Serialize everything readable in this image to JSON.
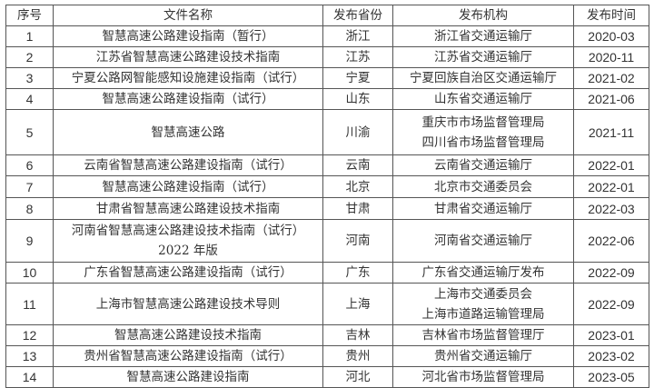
{
  "headers": [
    "序号",
    "文件名称",
    "发布省份",
    "发布机构",
    "发布时间"
  ],
  "rows": [
    {
      "no": "1",
      "name": [
        "智慧高速公路建设指南（暂行）"
      ],
      "province": "浙江",
      "org": [
        "浙江省交通运输厅"
      ],
      "date": "2020-03"
    },
    {
      "no": "2",
      "name": [
        "江苏省智慧高速公路建设技术指南"
      ],
      "province": "江苏",
      "org": [
        "江苏省交通运输厅"
      ],
      "date": "2020-11"
    },
    {
      "no": "3",
      "name": [
        "宁夏公路网智能感知设施建设指南（试行）"
      ],
      "province": "宁夏",
      "org": [
        "宁夏回族自治区交通运输厅"
      ],
      "date": "2021-02"
    },
    {
      "no": "4",
      "name": [
        "智慧高速公路建设指南（试行）"
      ],
      "province": "山东",
      "org": [
        "山东省交通运输厅"
      ],
      "date": "2021-06"
    },
    {
      "no": "5",
      "name": [
        "智慧高速公路"
      ],
      "province": "川渝",
      "org": [
        "重庆市市场监督管理局",
        "四川省市场监督管理局"
      ],
      "date": "2021-11"
    },
    {
      "no": "6",
      "name": [
        "云南省智慧高速公路建设指南（试行）"
      ],
      "province": "云南",
      "org": [
        "云南省交通运输厅"
      ],
      "date": "2022-01"
    },
    {
      "no": "7",
      "name": [
        "智慧高速公路建设指南（试行）"
      ],
      "province": "北京",
      "org": [
        "北京市交通委员会"
      ],
      "date": "2022-01"
    },
    {
      "no": "8",
      "name": [
        "甘肃省智慧高速公路建设技术指南"
      ],
      "province": "甘肃",
      "org": [
        "甘肃省交通运输厅"
      ],
      "date": "2022-03"
    },
    {
      "no": "9",
      "name": [
        "河南省智慧高速公路建设技术指南（试行）",
        "2022 年版"
      ],
      "province": "河南",
      "org": [
        "河南省交通运输厅"
      ],
      "date": "2022-06"
    },
    {
      "no": "10",
      "name": [
        "广东省智慧高速公路建设指南（试行）"
      ],
      "province": "广东",
      "org": [
        "广东省交通运输厅发布"
      ],
      "date": "2022-09"
    },
    {
      "no": "11",
      "name": [
        "上海市智慧高速公路建设技术导则"
      ],
      "province": "上海",
      "org": [
        "上海市交通委员会",
        "上海市道路运输管理局"
      ],
      "date": "2022-09"
    },
    {
      "no": "12",
      "name": [
        "智慧高速公路建设技术指南"
      ],
      "province": "吉林",
      "org": [
        "吉林省市场监督管理厅"
      ],
      "date": "2023-01"
    },
    {
      "no": "13",
      "name": [
        "贵州省智慧高速公路建设指南（试行）"
      ],
      "province": "贵州",
      "org": [
        "贵州省交通运输厅"
      ],
      "date": "2023-02"
    },
    {
      "no": "14",
      "name": [
        "智慧高速公路建设指南"
      ],
      "province": "河北",
      "org": [
        "河北省市场监督管理局"
      ],
      "date": "2023-05"
    }
  ]
}
